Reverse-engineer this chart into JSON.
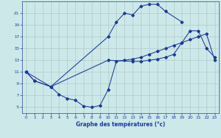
{
  "xlabel": "Graphe des températures (°c)",
  "bg_color": "#cce8e8",
  "line_color": "#1a3a9a",
  "grid_color": "#b0c8c8",
  "xlim": [
    -0.5,
    23.5
  ],
  "ylim": [
    4,
    23
  ],
  "xticks": [
    0,
    1,
    2,
    3,
    4,
    5,
    6,
    7,
    8,
    9,
    10,
    11,
    12,
    13,
    14,
    15,
    16,
    17,
    18,
    19,
    20,
    21,
    22,
    23
  ],
  "yticks": [
    5,
    7,
    9,
    11,
    13,
    15,
    17,
    19,
    21
  ],
  "curve_top_x": [
    0,
    1,
    3,
    10,
    11,
    12,
    13,
    14,
    15,
    16,
    17,
    19
  ],
  "curve_top_y": [
    11,
    9.5,
    8.5,
    17.0,
    19.5,
    21.0,
    20.7,
    22.2,
    22.5,
    22.5,
    21.3,
    19.5
  ],
  "curve_bot_x": [
    0,
    1,
    3,
    4,
    5,
    6,
    7,
    8,
    9,
    10,
    11,
    12,
    13,
    14,
    15,
    16,
    17,
    18,
    19,
    20,
    21,
    22,
    23
  ],
  "curve_bot_y": [
    11,
    9.5,
    8.5,
    7.2,
    6.5,
    6.2,
    5.2,
    5.0,
    5.3,
    8.0,
    12.8,
    13.0,
    13.2,
    13.5,
    14.0,
    14.5,
    15.0,
    15.5,
    16.0,
    16.5,
    17.0,
    17.5,
    13.0
  ],
  "curve_mid_x": [
    0,
    3,
    10,
    13,
    14,
    15,
    16,
    17,
    18,
    19,
    20,
    21,
    22,
    23
  ],
  "curve_mid_y": [
    11,
    8.5,
    13.0,
    12.8,
    12.8,
    13.0,
    13.2,
    13.5,
    14.0,
    16.0,
    18.0,
    18.0,
    15.0,
    13.5
  ]
}
